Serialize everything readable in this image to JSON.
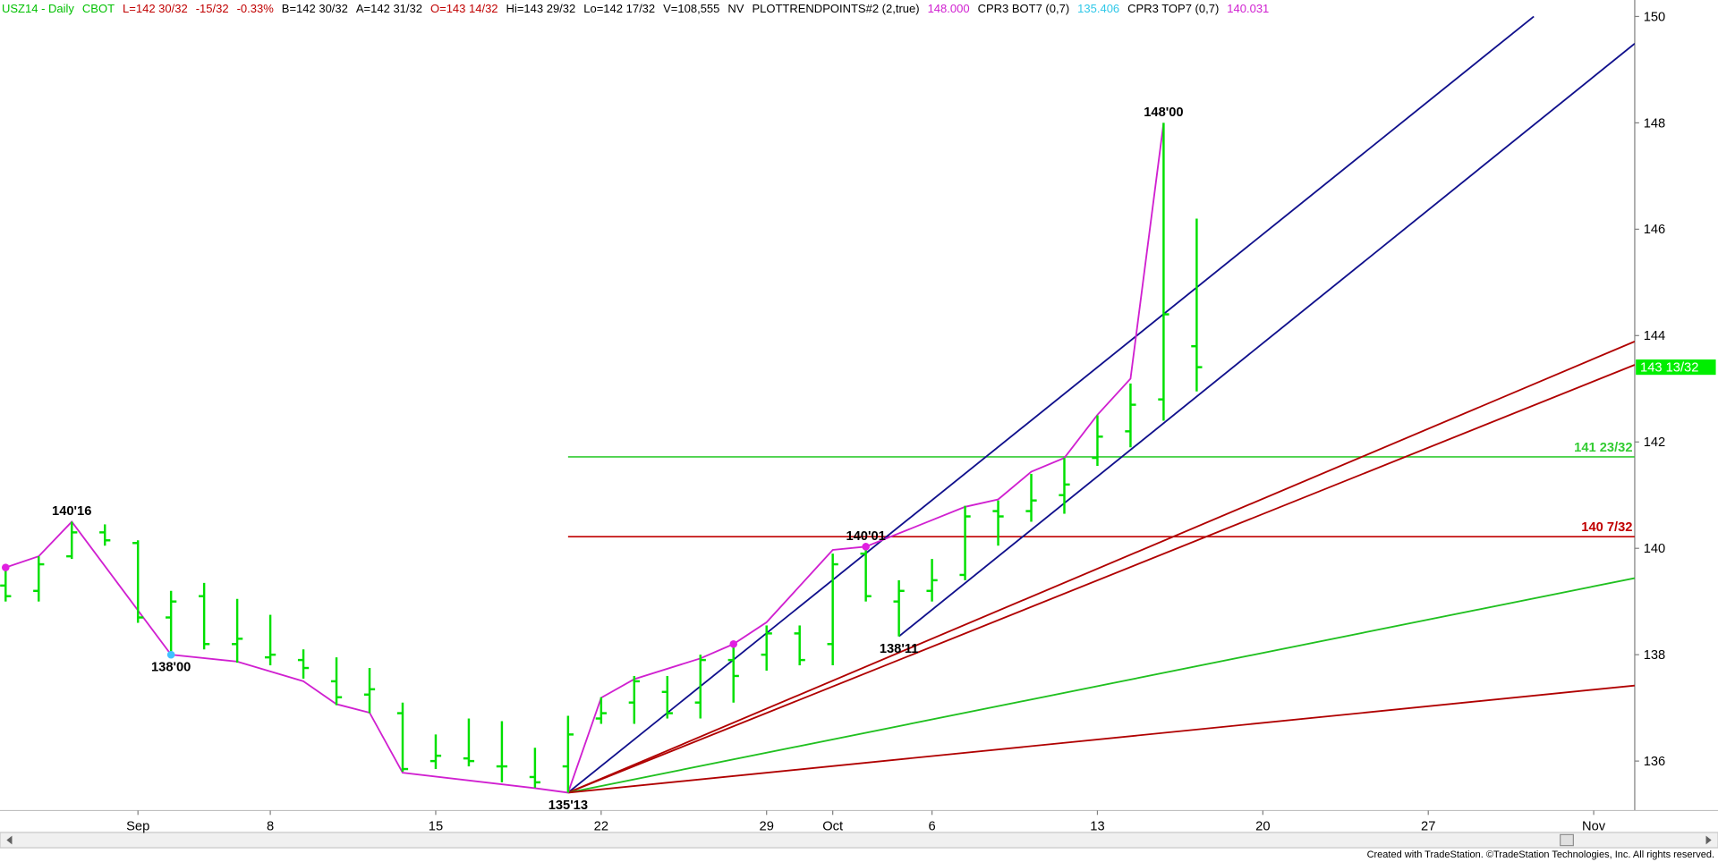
{
  "chart_data": {
    "type": "ohlc",
    "header": [
      {
        "text": "USZ14 - Daily",
        "color": "#00c000"
      },
      {
        "text": "CBOT",
        "color": "#00c000"
      },
      {
        "text": "L=142 30/32",
        "color": "#c00000"
      },
      {
        "text": "-15/32",
        "color": "#c00000"
      },
      {
        "text": "-0.33%",
        "color": "#c00000"
      },
      {
        "text": "B=142 30/32",
        "color": "#000000"
      },
      {
        "text": "A=142 31/32",
        "color": "#000000"
      },
      {
        "text": "O=143 14/32",
        "color": "#c00000"
      },
      {
        "text": "Hi=143 29/32",
        "color": "#000000"
      },
      {
        "text": "Lo=142 17/32",
        "color": "#000000"
      },
      {
        "text": "V=108,555",
        "color": "#000000"
      },
      {
        "text": "NV",
        "color": "#000000"
      },
      {
        "text": "PLOTTRENDPOINTS#2 (2,true)",
        "color": "#000000"
      },
      {
        "text": "148.000",
        "color": "#d020d0"
      },
      {
        "text": "CPR3 BOT7 (0,7)",
        "color": "#000000"
      },
      {
        "text": "135.406",
        "color": "#30c8e8"
      },
      {
        "text": "CPR3 TOP7 (0,7)",
        "color": "#000000"
      },
      {
        "text": "140.031",
        "color": "#d020d0"
      }
    ],
    "footer": "Created with TradeStation. ©TradeStation Technologies, Inc. All rights reserved.",
    "xlim": [
      -0.17,
      49.24
    ],
    "ylim": [
      135.07,
      150.31
    ],
    "yticks": [
      136,
      138,
      140,
      142,
      144,
      146,
      148,
      150
    ],
    "xticks": [
      {
        "value": 4,
        "label": "Sep"
      },
      {
        "value": 8,
        "label": "8"
      },
      {
        "value": 13,
        "label": "15"
      },
      {
        "value": 18,
        "label": "22"
      },
      {
        "value": 23,
        "label": "29"
      },
      {
        "value": 25,
        "label": "Oct"
      },
      {
        "value": 28,
        "label": "6"
      },
      {
        "value": 33,
        "label": "13"
      },
      {
        "value": 38,
        "label": "20"
      },
      {
        "value": 43,
        "label": "27"
      },
      {
        "value": 48,
        "label": "Nov"
      }
    ],
    "bar_color": "#00e000",
    "x": [
      0,
      1,
      2,
      3,
      4,
      5,
      6,
      7,
      8,
      9,
      10,
      11,
      12,
      13,
      14,
      15,
      16,
      17,
      18,
      19,
      20,
      21,
      22,
      23,
      24,
      25,
      26,
      27,
      28,
      29,
      30,
      31,
      32,
      33,
      34,
      35,
      36
    ],
    "open": [
      139.3,
      139.2,
      139.85,
      140.3,
      140.1,
      138.7,
      139.1,
      138.2,
      137.95,
      137.9,
      137.5,
      137.25,
      136.9,
      136.0,
      136.05,
      135.9,
      135.7,
      135.9,
      136.8,
      137.1,
      137.3,
      137.1,
      137.9,
      138.0,
      138.4,
      138.2,
      139.9,
      139.0,
      139.2,
      139.5,
      140.7,
      140.7,
      141.0,
      141.7,
      142.2,
      142.8,
      143.8
    ],
    "high": [
      139.7,
      139.85,
      140.5,
      140.45,
      140.15,
      139.2,
      139.35,
      139.05,
      138.75,
      138.1,
      137.95,
      137.75,
      137.1,
      136.5,
      136.8,
      136.75,
      136.25,
      136.85,
      137.2,
      137.6,
      137.6,
      138.0,
      138.2,
      138.55,
      138.55,
      139.9,
      140.03125,
      139.4,
      139.8,
      140.8,
      140.9,
      141.4,
      141.7,
      142.5,
      143.1,
      148.0,
      146.2
    ],
    "low": [
      139.0,
      139.0,
      139.8,
      140.05,
      138.6,
      138.0,
      138.1,
      137.85,
      137.8,
      137.55,
      137.05,
      136.9,
      135.8,
      135.85,
      135.9,
      135.6,
      135.5,
      135.40625,
      136.7,
      136.7,
      136.8,
      136.8,
      137.1,
      137.7,
      137.8,
      137.8,
      139.0,
      138.34375,
      139.0,
      139.4,
      140.05,
      140.5,
      140.65,
      141.55,
      141.9,
      142.4,
      142.95
    ],
    "close": [
      139.1,
      139.7,
      140.3,
      140.15,
      138.7,
      139.0,
      138.2,
      138.3,
      138.0,
      137.75,
      137.2,
      137.35,
      135.85,
      136.1,
      136.0,
      135.9,
      135.6,
      136.5,
      136.9,
      137.5,
      136.9,
      137.9,
      137.6,
      138.4,
      137.9,
      139.7,
      139.1,
      139.2,
      139.4,
      140.6,
      140.6,
      140.9,
      141.2,
      142.1,
      142.7,
      144.4,
      143.40625
    ],
    "trend": {
      "color": "#d020d0",
      "x": [
        0,
        1,
        2,
        5,
        7,
        9,
        10,
        11,
        12,
        16,
        17,
        18,
        19,
        21,
        22,
        23,
        25,
        26,
        29,
        30,
        31,
        32,
        33,
        34,
        35
      ],
      "y": [
        139.64,
        139.85,
        140.5,
        138.0,
        137.87,
        137.5,
        137.07,
        136.91,
        135.78,
        135.49,
        135.40625,
        137.19,
        137.54,
        137.93,
        138.2,
        138.61,
        139.97,
        140.03125,
        140.78,
        140.92,
        141.44,
        141.7,
        142.51,
        143.19,
        148.0
      ]
    },
    "dots": [
      {
        "x": 0,
        "y": 139.64,
        "color": "#e020e0"
      },
      {
        "x": 5,
        "y": 138.0,
        "color": "#40c0ff"
      },
      {
        "x": 22,
        "y": 138.2,
        "color": "#e020e0"
      },
      {
        "x": 26,
        "y": 140.03125,
        "color": "#e020e0"
      }
    ],
    "lines": [
      {
        "color": "#10108c",
        "x": [
          17,
          46.19
        ],
        "y": [
          135.40625,
          150.0
        ]
      },
      {
        "color": "#10108c",
        "x": [
          27,
          49.24
        ],
        "y": [
          138.34375,
          149.49
        ]
      },
      {
        "color": "#b00000",
        "x": [
          17,
          49.24
        ],
        "y": [
          135.40625,
          143.89
        ]
      },
      {
        "color": "#b00000",
        "x": [
          17,
          49.24
        ],
        "y": [
          135.40625,
          143.45
        ]
      },
      {
        "color": "#20c020",
        "x": [
          17,
          49.24
        ],
        "y": [
          135.40625,
          139.44
        ]
      },
      {
        "color": "#b00000",
        "x": [
          17,
          49.24
        ],
        "y": [
          135.40625,
          137.42
        ]
      }
    ],
    "levels": [
      {
        "value": 141.71875,
        "label": "141 23/32",
        "color": "#33cc33",
        "from_x": 17
      },
      {
        "value": 140.21875,
        "label": "140 7/32",
        "color": "#c00000",
        "from_x": 17
      }
    ],
    "annotations": [
      {
        "x": 2,
        "value": 140.5,
        "label": "140'16"
      },
      {
        "x": 5,
        "value": 138.0,
        "label": "138'00"
      },
      {
        "x": 17,
        "value": 135.40625,
        "label": "135'13"
      },
      {
        "x": 26,
        "value": 140.03125,
        "label": "140'01"
      },
      {
        "x": 27,
        "value": 138.34375,
        "label": "138'11"
      },
      {
        "x": 35,
        "value": 148.0,
        "label": "148'00"
      }
    ],
    "last_price": {
      "value": 143.40625,
      "label": "143 13/32",
      "color": "#00ee00"
    }
  }
}
